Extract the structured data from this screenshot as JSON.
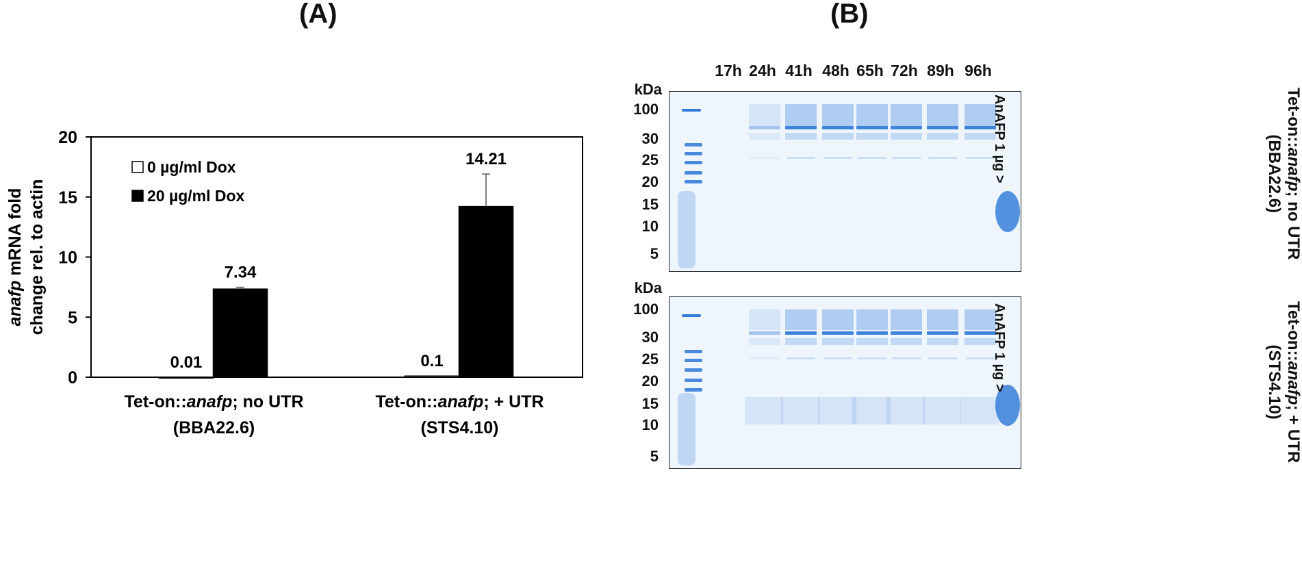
{
  "panelA": {
    "label": "(A)",
    "chart_data": {
      "type": "bar",
      "categories": [
        {
          "prefix": "Tet-on::",
          "italic": "anafp",
          "suffix": "; no UTR",
          "line2": "(BBA22.6)"
        },
        {
          "prefix": "Tet-on::",
          "italic": "anafp",
          "suffix": "; + UTR",
          "line2": "(STS4.10)"
        }
      ],
      "series": [
        {
          "name": "0 µg/ml Dox",
          "values": [
            0.01,
            0.1
          ],
          "errors": [
            0,
            0
          ],
          "labels": [
            "0.01",
            "0.1"
          ],
          "color": "#ffffff"
        },
        {
          "name": "20 µg/ml Dox",
          "values": [
            7.34,
            14.21
          ],
          "errors": [
            0.15,
            2.7
          ],
          "labels": [
            "7.34",
            "14.21"
          ],
          "color": "#000000"
        }
      ],
      "ylabel_italic": "anafp",
      "ylabel_line1_rest": " mRNA fold",
      "ylabel_line2": "change rel. to actin",
      "ylim": [
        0,
        20
      ],
      "yticks": [
        0,
        5,
        10,
        15,
        20
      ],
      "legend_position": "top-left",
      "grid": false
    }
  },
  "panelB": {
    "label": "(B)",
    "lanes": [
      "17h",
      "24h",
      "41h",
      "48h",
      "65h",
      "72h",
      "89h",
      "96h"
    ],
    "kda_label": "kDa",
    "markers": [
      "100",
      "30",
      "25",
      "20",
      "15",
      "10",
      "5"
    ],
    "inset_label": "AnAFP 1 µg >",
    "gel_colors": {
      "background": "#eef5fc",
      "stain": "#1f6fd6"
    },
    "gels": [
      {
        "prefix": "Tet-on::",
        "italic": "anafp",
        "suffix": "; no UTR",
        "line2": "(BBA22.6)"
      },
      {
        "prefix": "Tet-on::",
        "italic": "anafp",
        "suffix": "; + UTR",
        "line2": "(STS4.10)"
      }
    ]
  }
}
